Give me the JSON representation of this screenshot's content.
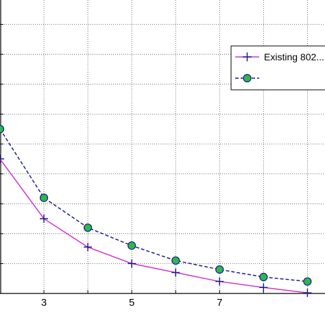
{
  "chart_data": {
    "type": "line",
    "x": [
      2,
      3,
      4,
      5,
      6,
      7,
      8,
      9
    ],
    "xlim": [
      2,
      9.4
    ],
    "ylim": [
      0,
      10
    ],
    "x_tick_labels": [
      "3",
      "5",
      "7"
    ],
    "x_tick_values": [
      3,
      5,
      7
    ],
    "x_grid_values": [
      3,
      4,
      5,
      6,
      7,
      8,
      9
    ],
    "y_grid_values": [
      1,
      2,
      3,
      4,
      5,
      6,
      7,
      8,
      9,
      10
    ],
    "grid": true,
    "legend_position": "top-right",
    "series": [
      {
        "name": "Existing 802...",
        "color": "#cc33cc",
        "marker": "plus",
        "line_style": "solid",
        "values": [
          4.5,
          2.5,
          1.55,
          1.0,
          0.7,
          0.4,
          0.2,
          0.02
        ]
      },
      {
        "name": "",
        "color": "#1a1a8c",
        "marker": "circle",
        "marker_fill": "#2db84d",
        "line_style": "dashed",
        "values": [
          5.5,
          3.2,
          2.2,
          1.6,
          1.1,
          0.8,
          0.55,
          0.4
        ]
      }
    ]
  }
}
